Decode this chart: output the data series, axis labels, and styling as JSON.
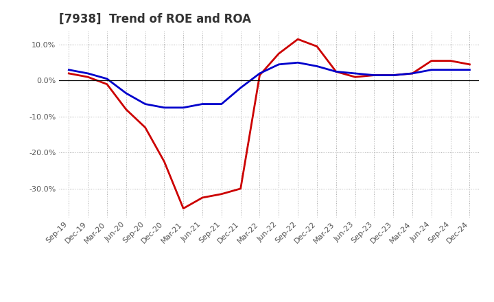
{
  "title": "[7938]  Trend of ROE and ROA",
  "x_labels": [
    "Sep-19",
    "Dec-19",
    "Mar-20",
    "Jun-20",
    "Sep-20",
    "Dec-20",
    "Mar-21",
    "Jun-21",
    "Sep-21",
    "Dec-21",
    "Mar-22",
    "Jun-22",
    "Sep-22",
    "Dec-22",
    "Mar-23",
    "Jun-23",
    "Sep-23",
    "Dec-23",
    "Mar-24",
    "Jun-24",
    "Sep-24",
    "Dec-24"
  ],
  "roe": [
    2.0,
    1.0,
    -1.0,
    -8.0,
    -13.0,
    -22.5,
    -35.5,
    -32.5,
    -31.5,
    -30.0,
    1.5,
    7.5,
    11.5,
    9.5,
    2.5,
    1.0,
    1.5,
    1.5,
    2.0,
    5.5,
    5.5,
    4.5
  ],
  "roa": [
    3.0,
    2.0,
    0.5,
    -3.5,
    -6.5,
    -7.5,
    -7.5,
    -6.5,
    -6.5,
    -2.0,
    2.0,
    4.5,
    5.0,
    4.0,
    2.5,
    2.0,
    1.5,
    1.5,
    2.0,
    3.0,
    3.0,
    3.0
  ],
  "roe_color": "#cc0000",
  "roa_color": "#0000cc",
  "background_color": "#ffffff",
  "grid_color": "#aaaaaa",
  "ylim": [
    -38,
    14
  ],
  "yticks": [
    10.0,
    0.0,
    -10.0,
    -20.0,
    -30.0
  ],
  "line_width": 2.0,
  "title_fontsize": 12,
  "legend_fontsize": 10,
  "tick_fontsize": 8,
  "title_color": "#333333",
  "tick_color": "#555555"
}
